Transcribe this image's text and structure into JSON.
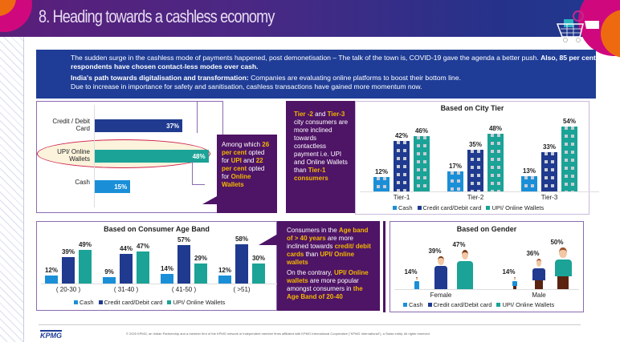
{
  "header": {
    "title": "8. Heading towards a cashless economy",
    "cart_icon": "shopping-cart-magnifier-icon"
  },
  "intro": {
    "p1_normal": "The sudden surge in the cashless mode of payments happened, post demonetisation – The talk of the town is, COVID-19 gave the agenda a better push. ",
    "p1_bold": "Also, 85 per cent respondents have chosen contact-less modes over cash.",
    "p2_bold": "India's path towards digitalisation and transformation: ",
    "p2_normal": "Companies are evaluating online platforms to boost their bottom line.",
    "p3": "Due to increase in importance for safety and sanitisation, cashless transactions have gained more momentum now."
  },
  "colors": {
    "cash": "#1a8fd8",
    "card": "#1f3a8f",
    "upi": "#1aa396",
    "purple": "#4e1466",
    "highlight": "#f5b800"
  },
  "chart_data": [
    {
      "type": "bar",
      "orientation": "horizontal",
      "title": "",
      "categories": [
        "Credit / Debit Card",
        "UPI/ Online Wallets",
        "Cash"
      ],
      "values": [
        37,
        48,
        15
      ],
      "labels": [
        "37%",
        "48%",
        "15%"
      ],
      "highlighted": "UPI/ Online Wallets"
    },
    {
      "type": "bar",
      "title": "Based on City Tier",
      "categories": [
        "Tier-1",
        "Tier-2",
        "Tier-3"
      ],
      "series": [
        {
          "name": "Cash",
          "values": [
            12,
            17,
            13
          ]
        },
        {
          "name": "Credit card/Debit card",
          "values": [
            42,
            35,
            33
          ]
        },
        {
          "name": "UPI/ Online Wallets",
          "values": [
            46,
            48,
            54
          ]
        }
      ],
      "legend": "bottom"
    },
    {
      "type": "bar",
      "title": "Based on Consumer Age Band",
      "categories": [
        "( 20-30 )",
        "( 31-40 )",
        "( 41-50 )",
        "( >51)"
      ],
      "series": [
        {
          "name": "Cash",
          "values": [
            12,
            9,
            14,
            12
          ]
        },
        {
          "name": "Credit card/Debit card",
          "values": [
            39,
            44,
            57,
            58
          ]
        },
        {
          "name": "UPI/ Online Wallets",
          "values": [
            49,
            47,
            29,
            30
          ]
        }
      ],
      "legend": "bottom"
    },
    {
      "type": "bar",
      "title": "Based on Gender",
      "categories": [
        "Female",
        "Male"
      ],
      "series": [
        {
          "name": "Cash",
          "values": [
            14,
            14
          ]
        },
        {
          "name": "Credit card/Debit card",
          "values": [
            39,
            36
          ]
        },
        {
          "name": "UPI/ Online Wallets",
          "values": [
            47,
            50
          ]
        }
      ],
      "legend": "bottom"
    }
  ],
  "callout_upi": {
    "t1": "Among which ",
    "h1": "26 per cent",
    "t2": " opted for ",
    "h2": "UPI",
    "t3": " and ",
    "h3": "22 per cent",
    "t4": " opted for ",
    "h4": "Online Wallets"
  },
  "callout_tier": {
    "h1": "Tier -2",
    "t1": " and ",
    "h2": "Tier-3",
    "t2": " city consumers are more inclined towards contactless payment i.e. UPI and Online Wallets than ",
    "h3": "Tier-1 consumers"
  },
  "callout_age": {
    "t1": "Consumers in the ",
    "h1": "Age band of > 40 years",
    "t2": " are more inclined towards ",
    "h2": "credit/ debit cards",
    "t3": " than ",
    "h3": "UPI/ Online wallets",
    "t4": "On the contrary, ",
    "h4": "UPI/ Online wallets",
    "t5": " are more popular amongst consumers in ",
    "h5": "the Age Band of 20-40"
  },
  "footer": {
    "logo": "KPMG",
    "copyright": "© 2020 KPMG, an Indian Partnership and a member firm of the KPMG network of independent member firms affiliated with KPMG International Cooperative (\"KPMG International\"), a Swiss entity. All rights reserved."
  }
}
